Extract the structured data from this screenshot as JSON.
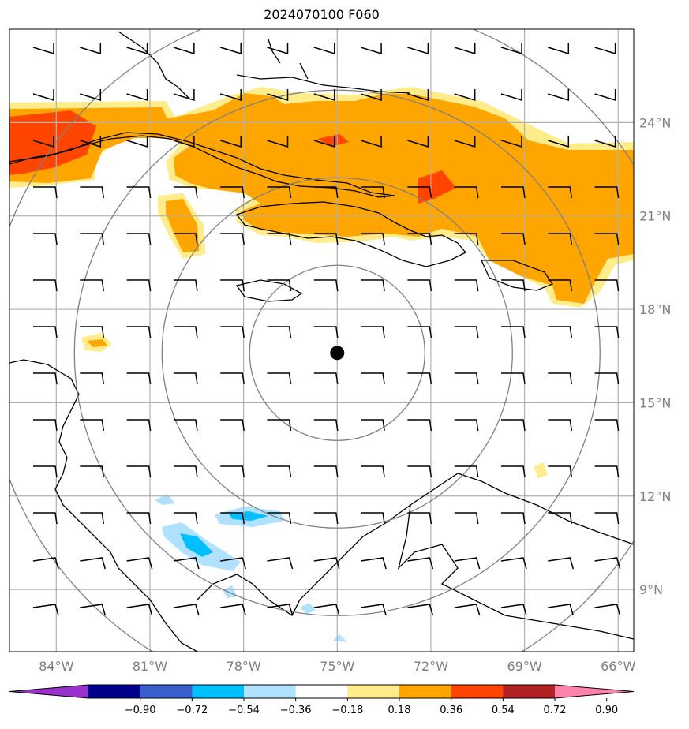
{
  "title": "2024070100 F060",
  "map": {
    "lon_range": [
      -85.5,
      -65.5
    ],
    "lat_range": [
      7,
      27
    ],
    "lon_ticks": [
      {
        "value": -84,
        "label": "84°W"
      },
      {
        "value": -81,
        "label": "81°W"
      },
      {
        "value": -78,
        "label": "78°W"
      },
      {
        "value": -75,
        "label": "75°W"
      },
      {
        "value": -72,
        "label": "72°W"
      },
      {
        "value": -69,
        "label": "69°W"
      },
      {
        "value": -66,
        "label": "66°W"
      }
    ],
    "lat_ticks": [
      {
        "value": 24,
        "label": "24°N"
      },
      {
        "value": 21,
        "label": "21°N"
      },
      {
        "value": 18,
        "label": "18°N"
      },
      {
        "value": 15,
        "label": "15°N"
      },
      {
        "value": 12,
        "label": "12°N"
      },
      {
        "value": 9,
        "label": "9°N"
      }
    ],
    "center_marker": {
      "lon": -75.0,
      "lat": 16.6
    },
    "range_ring_color": "#808080",
    "grid_color": "#b0b0b0"
  },
  "colorbar": {
    "colors": [
      "#9932cc",
      "#00008b",
      "#3a5fcd",
      "#00bfff",
      "#b0e2ff",
      "#ffffff",
      "#ffec8b",
      "#ffa500",
      "#ff4500",
      "#b22222",
      "#ff82ab"
    ],
    "tick_labels": [
      "−0.90",
      "−0.72",
      "−0.54",
      "−0.36",
      "−0.18",
      "0.18",
      "0.36",
      "0.54",
      "0.72",
      "0.90"
    ]
  }
}
